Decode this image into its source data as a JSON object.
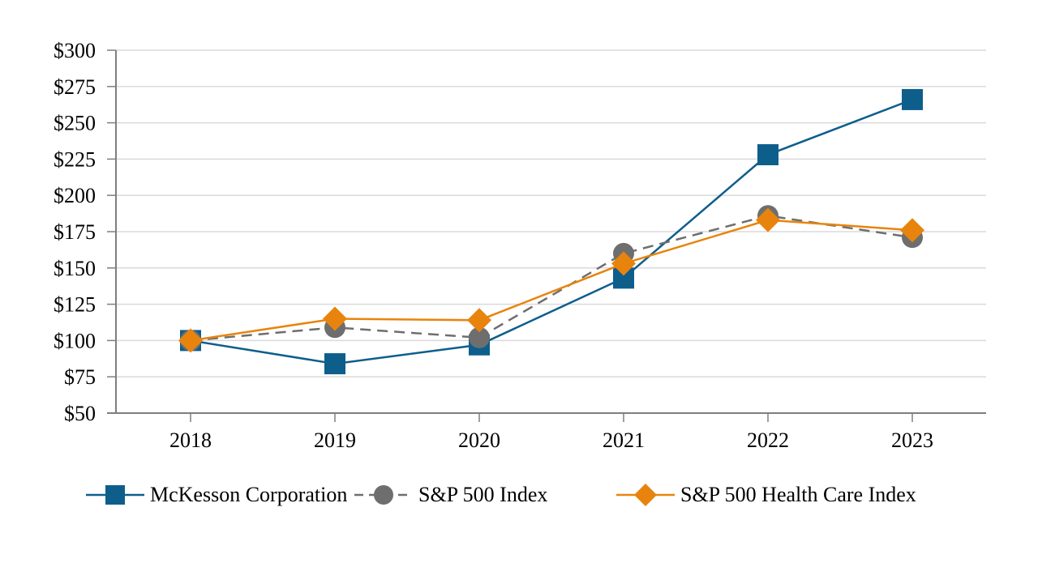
{
  "chart_data": {
    "type": "line",
    "title": "",
    "xlabel": "",
    "ylabel": "",
    "x_categories": [
      "2018",
      "2019",
      "2020",
      "2021",
      "2022",
      "2023"
    ],
    "ylim": [
      50,
      300
    ],
    "grid": "horizontal",
    "legend_position": "bottom",
    "y_ticks": [
      {
        "value": 50,
        "label": "$50"
      },
      {
        "value": 75,
        "label": "$75"
      },
      {
        "value": 100,
        "label": "$100"
      },
      {
        "value": 125,
        "label": "$125"
      },
      {
        "value": 150,
        "label": "$150"
      },
      {
        "value": 175,
        "label": "$175"
      },
      {
        "value": 200,
        "label": "$200"
      },
      {
        "value": 225,
        "label": "$225"
      },
      {
        "value": 250,
        "label": "$250"
      },
      {
        "value": 275,
        "label": "$275"
      },
      {
        "value": 300,
        "label": "$300"
      }
    ],
    "series": [
      {
        "name": "McKesson Corporation",
        "marker": "square",
        "marker_icon": "square-marker-icon",
        "line_style": "solid",
        "color": "#0E5E8C",
        "values": [
          100,
          84,
          97,
          143,
          228,
          266
        ]
      },
      {
        "name": "S&P 500 Index",
        "marker": "circle",
        "marker_icon": "circle-marker-icon",
        "line_style": "dashed",
        "color": "#6E6E6E",
        "values": [
          100,
          109,
          102,
          160,
          186,
          171
        ]
      },
      {
        "name": "S&P 500 Health Care Index",
        "marker": "diamond",
        "marker_icon": "diamond-marker-icon",
        "line_style": "solid",
        "color": "#E8840D",
        "values": [
          100,
          115,
          114,
          153,
          183,
          176
        ]
      }
    ]
  },
  "colors": {
    "background": "#FFFFFF",
    "grid": "#DADADA",
    "axis": "#7F7F7F",
    "text": "#000000",
    "mckesson_blue": "#0E5E8C",
    "sp500_gray": "#6E6E6E",
    "healthcare_orange": "#E8840D"
  }
}
